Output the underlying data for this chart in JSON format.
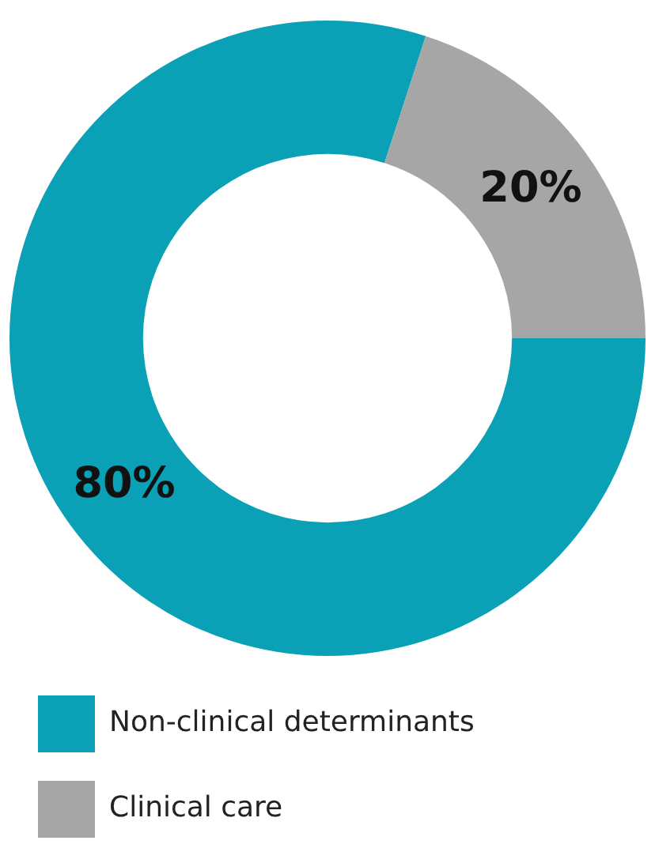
{
  "chart_data": {
    "type": "donut",
    "categories": [
      "Non-clinical determinants",
      "Clinical care"
    ],
    "values": [
      80,
      20
    ],
    "colors": [
      "#0aa0b5",
      "#a6a6a6"
    ],
    "value_labels": [
      "80%",
      "20%"
    ],
    "legend": "bottom"
  }
}
